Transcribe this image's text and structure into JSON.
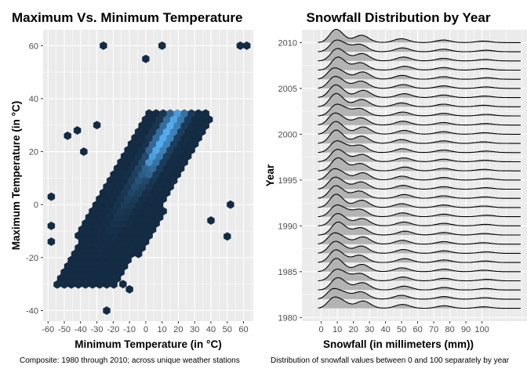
{
  "colors": {
    "panel_bg": "#ebebeb",
    "grid_major": "#ffffff",
    "hex_low": "#132b43",
    "hex_high": "#56b1f7",
    "ridge_fill": "#b3b3b3",
    "ridge_line": "#000000"
  },
  "chart_data": [
    {
      "type": "heatmap",
      "subtype": "hexbin",
      "title": "Maximum Vs. Minimum Temperature",
      "xlabel": "Minimum Temperature (in °C)",
      "ylabel": "Maximum Temperature (in °C)",
      "caption": "Composite: 1980 through 2010; across unique weather stations",
      "xlim": [
        -63,
        66
      ],
      "ylim": [
        -44,
        66
      ],
      "x_ticks": [
        "-60",
        "-50",
        "-40",
        "-30",
        "-20",
        "-10",
        "0",
        "10",
        "20",
        "30",
        "40",
        "50",
        "60"
      ],
      "y_ticks": [
        "-40",
        "-20",
        "0",
        "20",
        "40",
        "60"
      ],
      "grid": true,
      "legend": "none",
      "main_band": {
        "x_range": [
          -55,
          40
        ],
        "slope": 1.0,
        "intercept": 10,
        "width": 22
      },
      "density_peak": {
        "x": 12,
        "y": 24
      },
      "outliers": [
        {
          "x": -26,
          "y": 60
        },
        {
          "x": 10,
          "y": 60
        },
        {
          "x": 58,
          "y": 60
        },
        {
          "x": 62,
          "y": 60
        },
        {
          "x": 0,
          "y": 55
        },
        {
          "x": -48,
          "y": 26
        },
        {
          "x": -42,
          "y": 28
        },
        {
          "x": -30,
          "y": 30
        },
        {
          "x": -38,
          "y": 20
        },
        {
          "x": -58,
          "y": 3
        },
        {
          "x": -58,
          "y": -8
        },
        {
          "x": -58,
          "y": -14
        },
        {
          "x": 52,
          "y": 0
        },
        {
          "x": 50,
          "y": -12
        },
        {
          "x": -14,
          "y": -30
        },
        {
          "x": -24,
          "y": -40
        },
        {
          "x": -10,
          "y": -32
        },
        {
          "x": 40,
          "y": -6
        }
      ]
    },
    {
      "type": "area",
      "subtype": "ridgeline",
      "title": "Snowfall Distribution by Year",
      "xlabel": "Snowfall (in millimeters (mm))",
      "ylabel": "Year",
      "caption": "Distribution of snowfall values between 0 and 100 separately by year",
      "xlim": [
        -12,
        128
      ],
      "x_ticks": [
        "0",
        "10",
        "20",
        "30",
        "40",
        "50",
        "60",
        "70",
        "80",
        "90",
        "100"
      ],
      "y_ticks": [
        "1980",
        "1985",
        "1990",
        "1995",
        "2000",
        "2005",
        "2010"
      ],
      "years": [
        1981,
        1982,
        1983,
        1984,
        1985,
        1986,
        1987,
        1988,
        1989,
        1990,
        1991,
        1992,
        1993,
        1994,
        1995,
        1996,
        1997,
        1998,
        1999,
        2000,
        2001,
        2002,
        2003,
        2004,
        2005,
        2006,
        2007,
        2008,
        2009,
        2010
      ],
      "grid": true,
      "legend": "none",
      "density_peaks_mm": [
        8,
        13,
        25,
        51,
        76,
        102
      ],
      "density_peak_heights": [
        1.0,
        0.75,
        0.85,
        0.45,
        0.3,
        0.18
      ]
    }
  ]
}
